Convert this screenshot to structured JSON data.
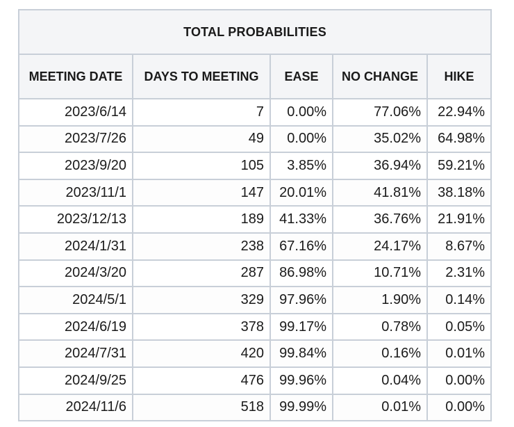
{
  "table": {
    "title": "TOTAL PROBABILITIES",
    "headers": [
      "MEETING DATE",
      "DAYS TO MEETING",
      "EASE",
      "NO CHANGE",
      "HIKE"
    ],
    "rows": [
      [
        "2023/6/14",
        "7",
        "0.00%",
        "77.06%",
        "22.94%"
      ],
      [
        "2023/7/26",
        "49",
        "0.00%",
        "35.02%",
        "64.98%"
      ],
      [
        "2023/9/20",
        "105",
        "3.85%",
        "36.94%",
        "59.21%"
      ],
      [
        "2023/11/1",
        "147",
        "20.01%",
        "41.81%",
        "38.18%"
      ],
      [
        "2023/12/13",
        "189",
        "41.33%",
        "36.76%",
        "21.91%"
      ],
      [
        "2024/1/31",
        "238",
        "67.16%",
        "24.17%",
        "8.67%"
      ],
      [
        "2024/3/20",
        "287",
        "86.98%",
        "10.71%",
        "2.31%"
      ],
      [
        "2024/5/1",
        "329",
        "97.96%",
        "1.90%",
        "0.14%"
      ],
      [
        "2024/6/19",
        "378",
        "99.17%",
        "0.78%",
        "0.05%"
      ],
      [
        "2024/7/31",
        "420",
        "99.84%",
        "0.16%",
        "0.01%"
      ],
      [
        "2024/9/25",
        "476",
        "99.96%",
        "0.04%",
        "0.00%"
      ],
      [
        "2024/11/6",
        "518",
        "99.99%",
        "0.01%",
        "0.00%"
      ]
    ]
  },
  "colors": {
    "border": "#c8cfd8",
    "header_bg": "#f4f5f7",
    "text": "#1a1a1a"
  }
}
